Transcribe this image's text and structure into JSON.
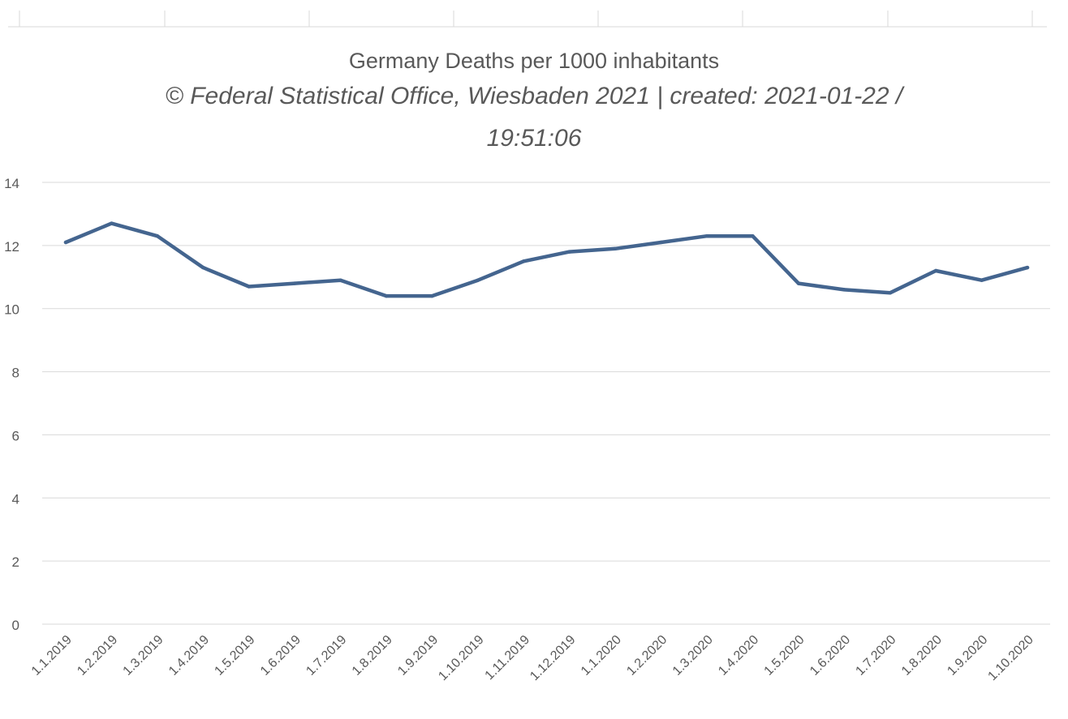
{
  "chart_data": {
    "type": "line",
    "title": "Germany Deaths per 1000 inhabitants",
    "subtitle_lines": [
      "© Federal Statistical Office, Wiesbaden 2021 | created: 2021-01-22 /",
      "19:51:06"
    ],
    "xlabel": "",
    "ylabel": "",
    "ylim": [
      0,
      14
    ],
    "yticks": [
      "0",
      "2",
      "4",
      "6",
      "8",
      "10",
      "12",
      "14"
    ],
    "grid": "horizontal",
    "legend": "none",
    "line_color": "#44658f",
    "grid_color": "#d9d9d9",
    "text_color": "#595959",
    "categories": [
      "1.1.2019",
      "1.2.2019",
      "1.3.2019",
      "1.4.2019",
      "1.5.2019",
      "1.6.2019",
      "1.7.2019",
      "1.8.2019",
      "1.9.2019",
      "1.10.2019",
      "1.11.2019",
      "1.12.2019",
      "1.1.2020",
      "1.2.2020",
      "1.3.2020",
      "1.4.2020",
      "1.5.2020",
      "1.6.2020",
      "1.7.2020",
      "1.8.2020",
      "1.9.2020",
      "1.10.2020"
    ],
    "values": [
      12.1,
      12.7,
      12.3,
      11.3,
      10.7,
      10.8,
      10.9,
      10.4,
      10.4,
      10.9,
      11.5,
      11.8,
      11.9,
      12.1,
      12.3,
      12.3,
      10.8,
      10.6,
      10.5,
      11.2,
      10.9,
      11.3
    ]
  }
}
